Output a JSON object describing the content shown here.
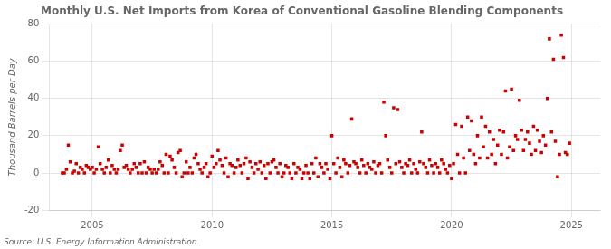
{
  "chart_data": {
    "type": "scatter",
    "title": "Monthly U.S. Net Imports from Korea of Conventional Gasoline Blending Components",
    "y_label": "Thousand Barrels per Day",
    "source": "Source: U.S. Energy Information Administration",
    "color": "#CC0000",
    "marker": "square",
    "grid": true,
    "xlim": [
      2003.2,
      2026.2
    ],
    "xticks": [
      2005,
      2010,
      2015,
      2020,
      2025
    ],
    "ylim": [
      -20,
      80
    ],
    "yticks": [
      -20,
      0,
      20,
      40,
      60,
      80
    ],
    "x": [
      2003.75,
      2003.83,
      2003.92,
      2004.0,
      2004.08,
      2004.17,
      2004.25,
      2004.33,
      2004.42,
      2004.5,
      2004.58,
      2004.67,
      2004.75,
      2004.83,
      2004.92,
      2005.0,
      2005.08,
      2005.17,
      2005.25,
      2005.33,
      2005.42,
      2005.5,
      2005.58,
      2005.67,
      2005.75,
      2005.83,
      2005.92,
      2006.0,
      2006.08,
      2006.17,
      2006.25,
      2006.33,
      2006.42,
      2006.5,
      2006.58,
      2006.67,
      2006.75,
      2006.83,
      2006.92,
      2007.0,
      2007.08,
      2007.17,
      2007.25,
      2007.33,
      2007.42,
      2007.5,
      2007.58,
      2007.67,
      2007.75,
      2007.83,
      2007.92,
      2008.0,
      2008.08,
      2008.17,
      2008.25,
      2008.33,
      2008.42,
      2008.5,
      2008.58,
      2008.67,
      2008.75,
      2008.83,
      2008.92,
      2009.0,
      2009.08,
      2009.17,
      2009.25,
      2009.33,
      2009.42,
      2009.5,
      2009.58,
      2009.67,
      2009.75,
      2009.83,
      2009.92,
      2010.0,
      2010.08,
      2010.17,
      2010.25,
      2010.33,
      2010.42,
      2010.5,
      2010.58,
      2010.67,
      2010.75,
      2010.83,
      2010.92,
      2011.0,
      2011.08,
      2011.17,
      2011.25,
      2011.33,
      2011.42,
      2011.5,
      2011.58,
      2011.67,
      2011.75,
      2011.83,
      2011.92,
      2012.0,
      2012.08,
      2012.17,
      2012.25,
      2012.33,
      2012.42,
      2012.5,
      2012.58,
      2012.67,
      2012.75,
      2012.83,
      2012.92,
      2013.0,
      2013.08,
      2013.17,
      2013.25,
      2013.33,
      2013.42,
      2013.5,
      2013.58,
      2013.67,
      2013.75,
      2013.83,
      2013.92,
      2014.0,
      2014.08,
      2014.17,
      2014.25,
      2014.33,
      2014.42,
      2014.5,
      2014.58,
      2014.67,
      2014.75,
      2014.83,
      2014.92,
      2015.0,
      2015.08,
      2015.17,
      2015.25,
      2015.33,
      2015.42,
      2015.5,
      2015.58,
      2015.67,
      2015.75,
      2015.83,
      2015.92,
      2016.0,
      2016.08,
      2016.17,
      2016.25,
      2016.33,
      2016.42,
      2016.5,
      2016.58,
      2016.67,
      2016.75,
      2016.83,
      2016.92,
      2017.0,
      2017.08,
      2017.17,
      2017.25,
      2017.33,
      2017.42,
      2017.5,
      2017.58,
      2017.67,
      2017.75,
      2017.83,
      2017.92,
      2018.0,
      2018.08,
      2018.17,
      2018.25,
      2018.33,
      2018.42,
      2018.5,
      2018.58,
      2018.67,
      2018.75,
      2018.83,
      2018.92,
      2019.0,
      2019.08,
      2019.17,
      2019.25,
      2019.33,
      2019.42,
      2019.5,
      2019.58,
      2019.67,
      2019.75,
      2019.83,
      2019.92,
      2020.0,
      2020.08,
      2020.17,
      2020.25,
      2020.33,
      2020.42,
      2020.5,
      2020.58,
      2020.67,
      2020.75,
      2020.83,
      2020.92,
      2021.0,
      2021.08,
      2021.17,
      2021.25,
      2021.33,
      2021.42,
      2021.5,
      2021.58,
      2021.67,
      2021.75,
      2021.83,
      2021.92,
      2022.0,
      2022.08,
      2022.17,
      2022.25,
      2022.33,
      2022.42,
      2022.5,
      2022.58,
      2022.67,
      2022.75,
      2022.83,
      2022.92,
      2023.0,
      2023.08,
      2023.17,
      2023.25,
      2023.33,
      2023.42,
      2023.5,
      2023.58,
      2023.67,
      2023.75,
      2023.83,
      2023.92,
      2024.0,
      2024.08,
      2024.17,
      2024.25,
      2024.33,
      2024.42,
      2024.5,
      2024.58,
      2024.67,
      2024.75,
      2024.83,
      2024.92
    ],
    "values": [
      0,
      0,
      2,
      15,
      6,
      0,
      1,
      5,
      0,
      3,
      2,
      0,
      4,
      3,
      2,
      3,
      0,
      2,
      14,
      5,
      2,
      0,
      3,
      7,
      0,
      4,
      2,
      0,
      2,
      12,
      15,
      3,
      4,
      2,
      0,
      2,
      5,
      3,
      0,
      5,
      0,
      6,
      0,
      3,
      2,
      0,
      2,
      0,
      2,
      6,
      4,
      0,
      10,
      0,
      9,
      7,
      3,
      0,
      11,
      12,
      -2,
      0,
      6,
      0,
      3,
      0,
      8,
      10,
      5,
      2,
      0,
      3,
      5,
      -2,
      0,
      9,
      3,
      5,
      12,
      7,
      4,
      0,
      8,
      -2,
      5,
      4,
      0,
      3,
      7,
      4,
      0,
      5,
      8,
      -3,
      6,
      3,
      0,
      5,
      2,
      6,
      0,
      4,
      -3,
      5,
      0,
      6,
      7,
      3,
      0,
      5,
      -2,
      0,
      4,
      3,
      0,
      -3,
      5,
      0,
      3,
      2,
      -3,
      0,
      4,
      0,
      -3,
      5,
      0,
      8,
      -2,
      5,
      3,
      0,
      5,
      2,
      -3,
      20,
      5,
      0,
      8,
      3,
      -2,
      7,
      5,
      0,
      4,
      29,
      6,
      5,
      3,
      0,
      7,
      4,
      0,
      5,
      3,
      2,
      6,
      0,
      4,
      5,
      0,
      38,
      20,
      7,
      3,
      0,
      35,
      5,
      34,
      6,
      3,
      0,
      5,
      4,
      7,
      0,
      5,
      2,
      0,
      6,
      22,
      5,
      3,
      0,
      7,
      4,
      0,
      5,
      3,
      0,
      7,
      5,
      2,
      0,
      4,
      -3,
      5,
      26,
      10,
      0,
      25,
      8,
      0,
      30,
      12,
      28,
      10,
      5,
      20,
      8,
      30,
      14,
      25,
      8,
      22,
      10,
      18,
      5,
      15,
      23,
      10,
      22,
      44,
      8,
      14,
      45,
      12,
      20,
      18,
      39,
      23,
      12,
      18,
      22,
      16,
      10,
      25,
      12,
      23,
      17,
      11,
      20,
      15,
      40,
      72,
      22,
      61,
      17,
      -2,
      10,
      74,
      62,
      11,
      10,
      16
    ]
  }
}
